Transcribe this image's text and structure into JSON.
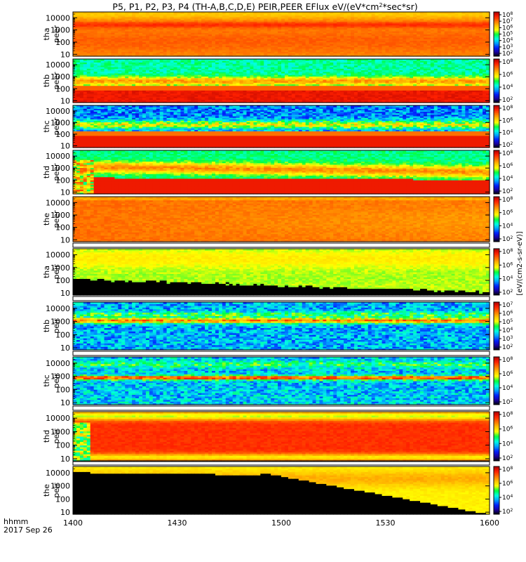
{
  "chart_data": {
    "type": "heatmap",
    "title": "P5, P1, P2, P3, P4 (TH-A,B,C,D,E) PEIR,PEER EFlux eV/(eV*cm2*sec*sr)",
    "title_parts": {
      "main": "P5, P1, P2, P3, P4 (TH-A,B,C,D,E) PEIR,PEER EFlux eV/(eV*cm",
      "sup": "2",
      "tail": "*sec*sr)"
    },
    "x_axis": {
      "prefix_label": "hhmm",
      "date_label": "2017 Sep 26",
      "ticks": [
        "1400",
        "1430",
        "1500",
        "1530",
        "1600"
      ],
      "tick_values_min": [
        0,
        30,
        60,
        90,
        120
      ],
      "range_min": [
        0,
        120
      ]
    },
    "y_axis": {
      "scale": "log",
      "range_eV": [
        7,
        30000
      ],
      "ticks": [
        "10",
        "100",
        "1000",
        "10000"
      ],
      "tick_values": [
        10,
        100,
        1000,
        10000
      ]
    },
    "colorbar": {
      "scale": "log",
      "colors": [
        "#000000",
        "#1a00a0",
        "#0020ff",
        "#00a0ff",
        "#00ffe0",
        "#00ff40",
        "#ffff00",
        "#ffc000",
        "#ff7000",
        "#ff2000",
        "#b00000"
      ],
      "label": "[eV/(cm2-s-sr-eV)]"
    },
    "panels": [
      {
        "label1": "tha",
        "label2": "peer",
        "profile": "tha_peer",
        "cb_ticks": [
          "10^8",
          "10^7",
          "10^6",
          "10^5",
          "10^4",
          "10^3",
          "10^2"
        ]
      },
      {
        "label1": "thb",
        "label2": "peer",
        "profile": "thb_peer",
        "cb_ticks": [
          "10^8",
          "10^6",
          "10^4",
          "10^2"
        ]
      },
      {
        "label1": "thc",
        "label2": "peer",
        "profile": "thc_peer",
        "cb_ticks": [
          "10^8",
          "10^6",
          "10^4",
          "10^2"
        ]
      },
      {
        "label1": "thd",
        "label2": "peer",
        "profile": "thd_peer",
        "cb_ticks": [
          "10^8",
          "10^6",
          "10^4",
          "10^2"
        ]
      },
      {
        "label1": "the",
        "label2": "peer",
        "profile": "the_peer",
        "cb_ticks": [
          "10^8",
          "10^6",
          "10^4",
          "10^2"
        ]
      },
      {
        "label1": "tha",
        "label2": "peir",
        "profile": "tha_peir",
        "cb_ticks": [
          "10^8",
          "10^6",
          "10^4",
          "10^2"
        ]
      },
      {
        "label1": "thb",
        "label2": "peir",
        "profile": "thb_peir",
        "cb_ticks": [
          "10^7",
          "10^6",
          "10^5",
          "10^4",
          "10^3",
          "10^2"
        ]
      },
      {
        "label1": "thc",
        "label2": "peir",
        "profile": "thc_peir",
        "cb_ticks": [
          "10^8",
          "10^6",
          "10^4",
          "10^2"
        ]
      },
      {
        "label1": "thd",
        "label2": "peir",
        "profile": "thd_peir",
        "cb_ticks": [
          "10^8",
          "10^6",
          "10^4",
          "10^2"
        ]
      },
      {
        "label1": "the",
        "label2": "peir",
        "profile": "the_peir",
        "cb_ticks": [
          "10^8",
          "10^6",
          "10^4",
          "10^2"
        ]
      }
    ]
  }
}
